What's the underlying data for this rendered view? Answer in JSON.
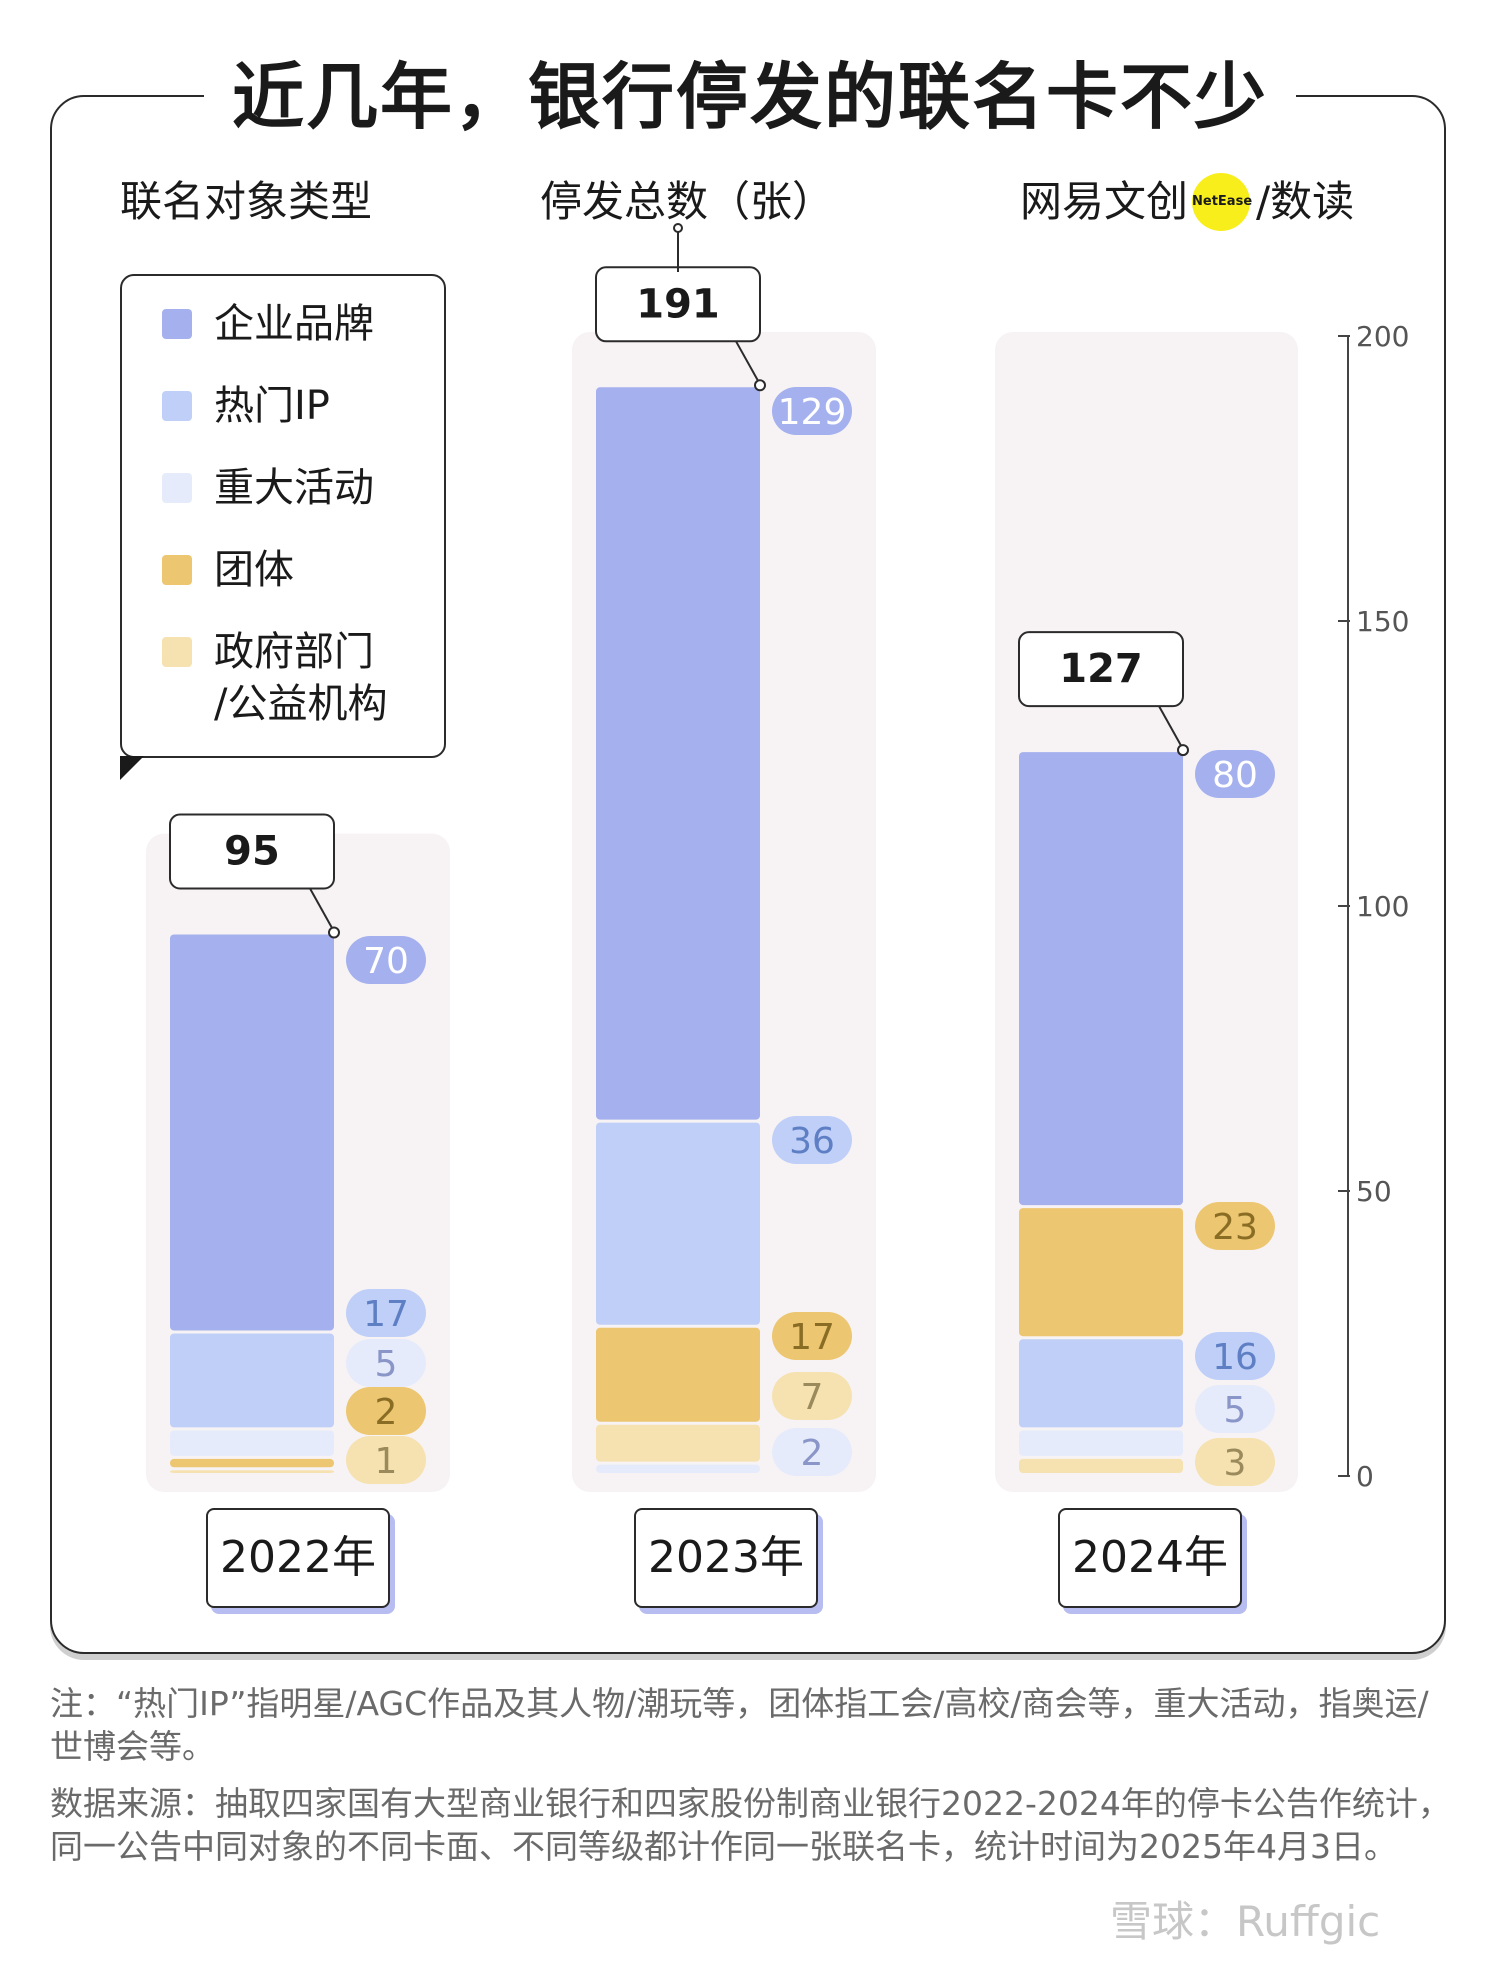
{
  "title": "近几年，银行停发的联名卡不少",
  "headers": {
    "type": "联名对象类型",
    "total": "停发总数（张）"
  },
  "brand": {
    "name": "网易文创",
    "badge": "NetEase",
    "slash": "/",
    "sub": "数读"
  },
  "legend": [
    {
      "label": "企业品牌",
      "color": "#a5b0ee"
    },
    {
      "label": "热门IP",
      "color": "#bfcff7"
    },
    {
      "label": "重大活动",
      "color": "#e6ebfb"
    },
    {
      "label": "团体",
      "color": "#ecc671"
    },
    {
      "label": "政府部门\n/公益机构",
      "color": "#f5e2b0"
    }
  ],
  "chart_data": {
    "type": "bar",
    "stacked": true,
    "categories": [
      "2022年",
      "2023年",
      "2024年"
    ],
    "series": [
      {
        "name": "企业品牌",
        "values": [
          70,
          129,
          80
        ],
        "color": "#a5b0ee",
        "label_bg": "#a5b0ee",
        "label_color": "#ffffff"
      },
      {
        "name": "热门IP",
        "values": [
          17,
          36,
          16
        ],
        "color": "#bfcff7",
        "label_bg": "#bfcff7",
        "label_color": "#5f7fc4"
      },
      {
        "name": "重大活动",
        "values": [
          5,
          2,
          5
        ],
        "color": "#e6ebfb",
        "label_bg": "#e6ebfb",
        "label_color": "#8a96c8"
      },
      {
        "name": "团体",
        "values": [
          2,
          17,
          23
        ],
        "color": "#ecc671",
        "label_bg": "#ecc671",
        "label_color": "#8a6d24"
      },
      {
        "name": "政府部门/公益机构",
        "values": [
          1,
          7,
          3
        ],
        "color": "#f5e2b0",
        "label_bg": "#f5e2b0",
        "label_color": "#9a8a5c"
      }
    ],
    "totals": [
      95,
      191,
      127
    ],
    "ylim": [
      0,
      200
    ],
    "yticks": [
      0,
      50,
      100,
      150,
      200
    ]
  },
  "notes": {
    "note": "注：“热门IP”指明星/AGC作品及其人物/潮玩等，团体指工会/高校/商会等，重大活动，指奥运/世博会等。",
    "source": "数据来源：抽取四家国有大型商业银行和四家股份制商业银行2022-2024年的停卡公告作统计，同一公告中同对象的不同卡面、不同等级都计作同一张联名卡，统计时间为2025年4月3日。"
  },
  "watermark": "雪球：Ruffgic"
}
